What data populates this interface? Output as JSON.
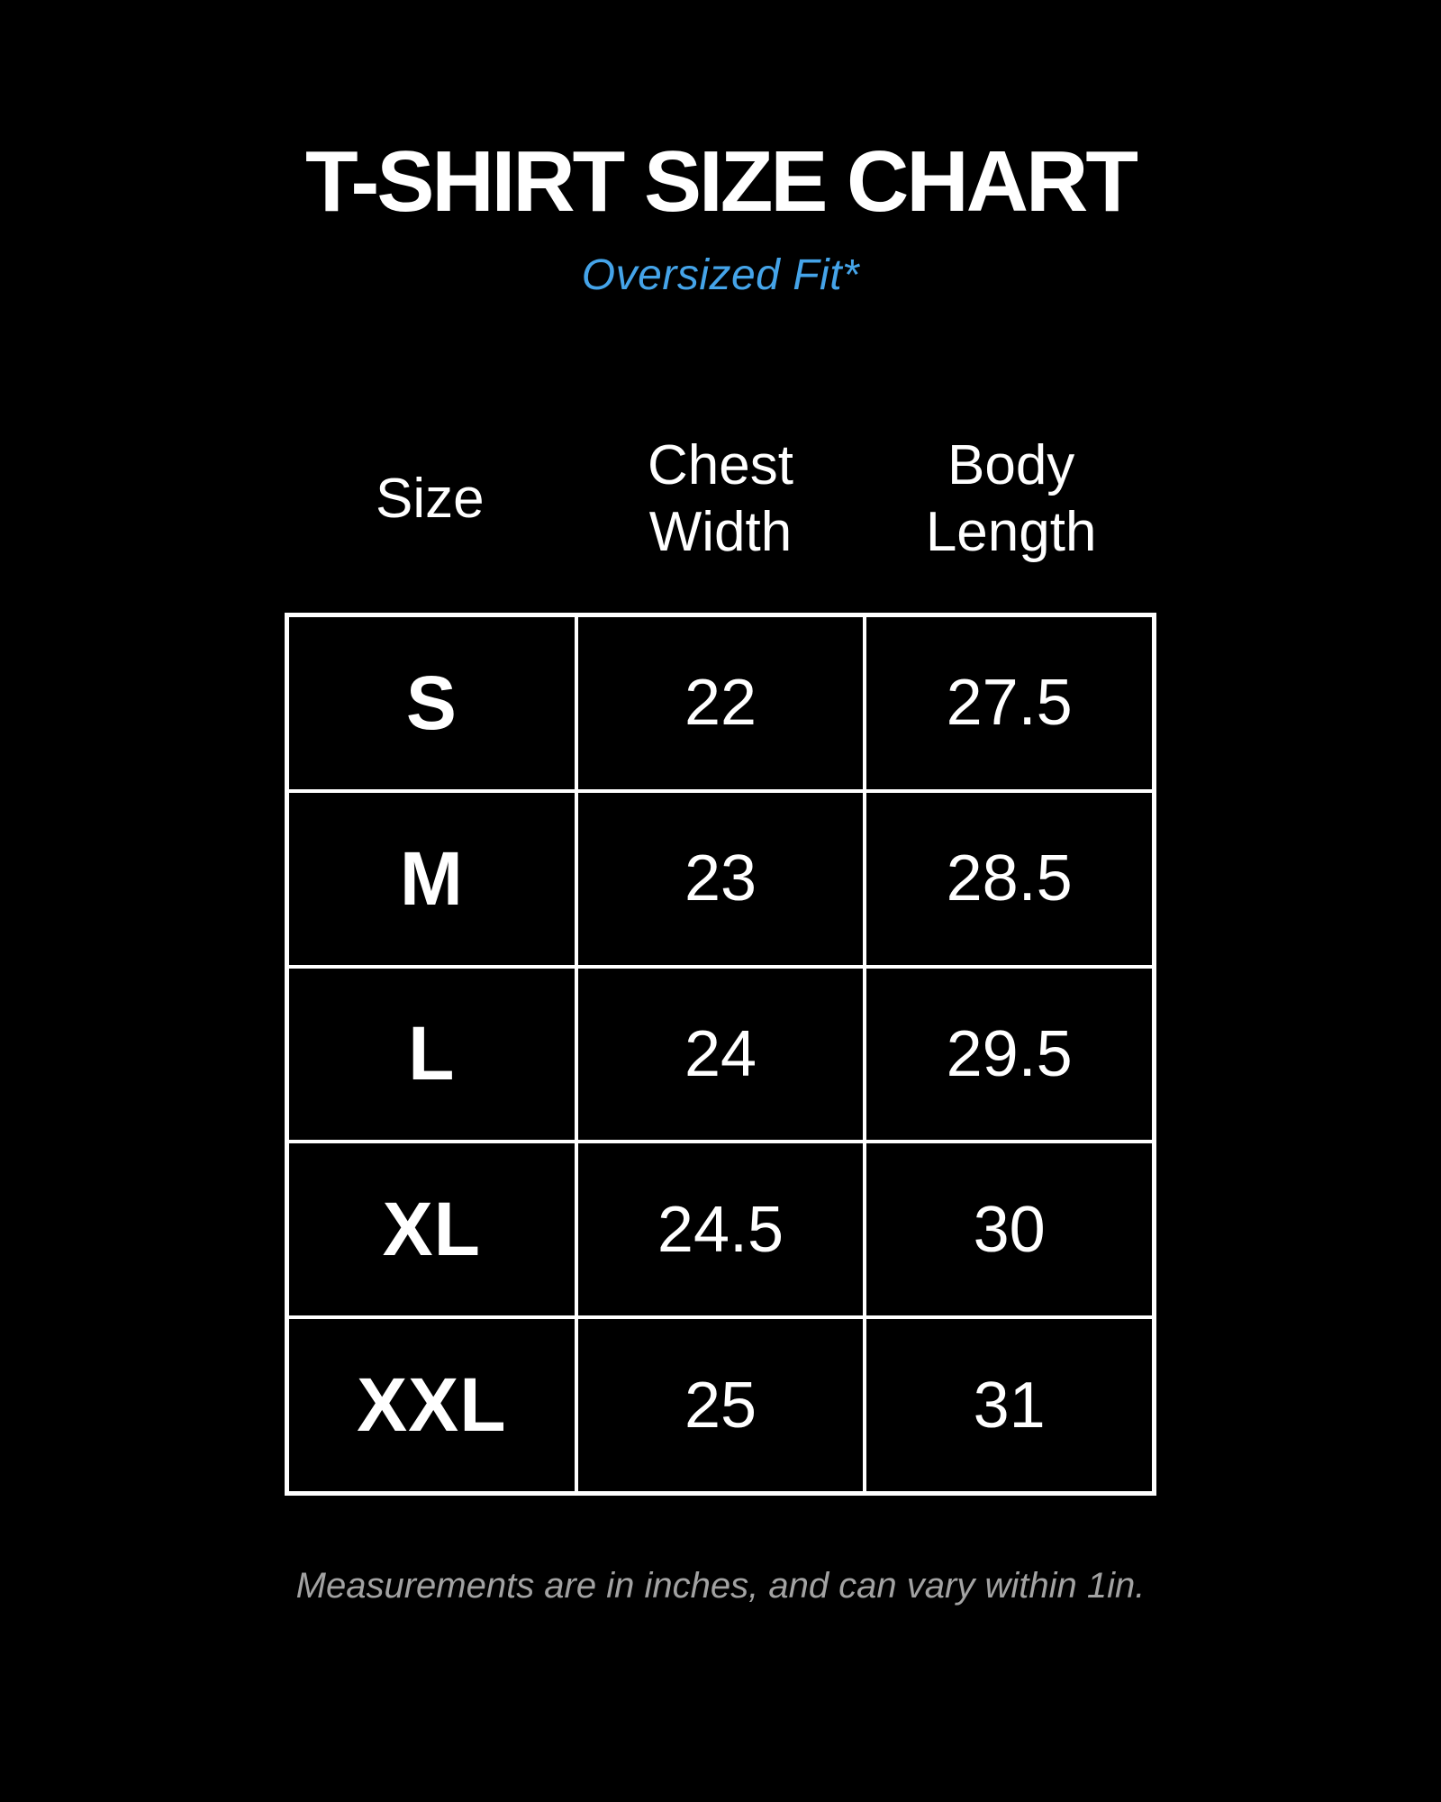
{
  "colors": {
    "background": "#000000",
    "title_text": "#ffffff",
    "accent_blue": "#45a4e9",
    "table_border": "#ffffff",
    "footnote_gray": "#a2a2a2"
  },
  "chart_data": {
    "type": "table",
    "title": "T-SHIRT SIZE CHART",
    "subtitle": "Oversized Fit*",
    "columns": [
      "Size",
      "Chest Width",
      "Body Length"
    ],
    "rows": [
      [
        "S",
        22,
        27.5
      ],
      [
        "M",
        23,
        28.5
      ],
      [
        "L",
        24,
        29.5
      ],
      [
        "XL",
        24.5,
        30
      ],
      [
        "XXL",
        25,
        31
      ]
    ],
    "footnote": "Measurements are in inches, and can vary within 1in."
  }
}
